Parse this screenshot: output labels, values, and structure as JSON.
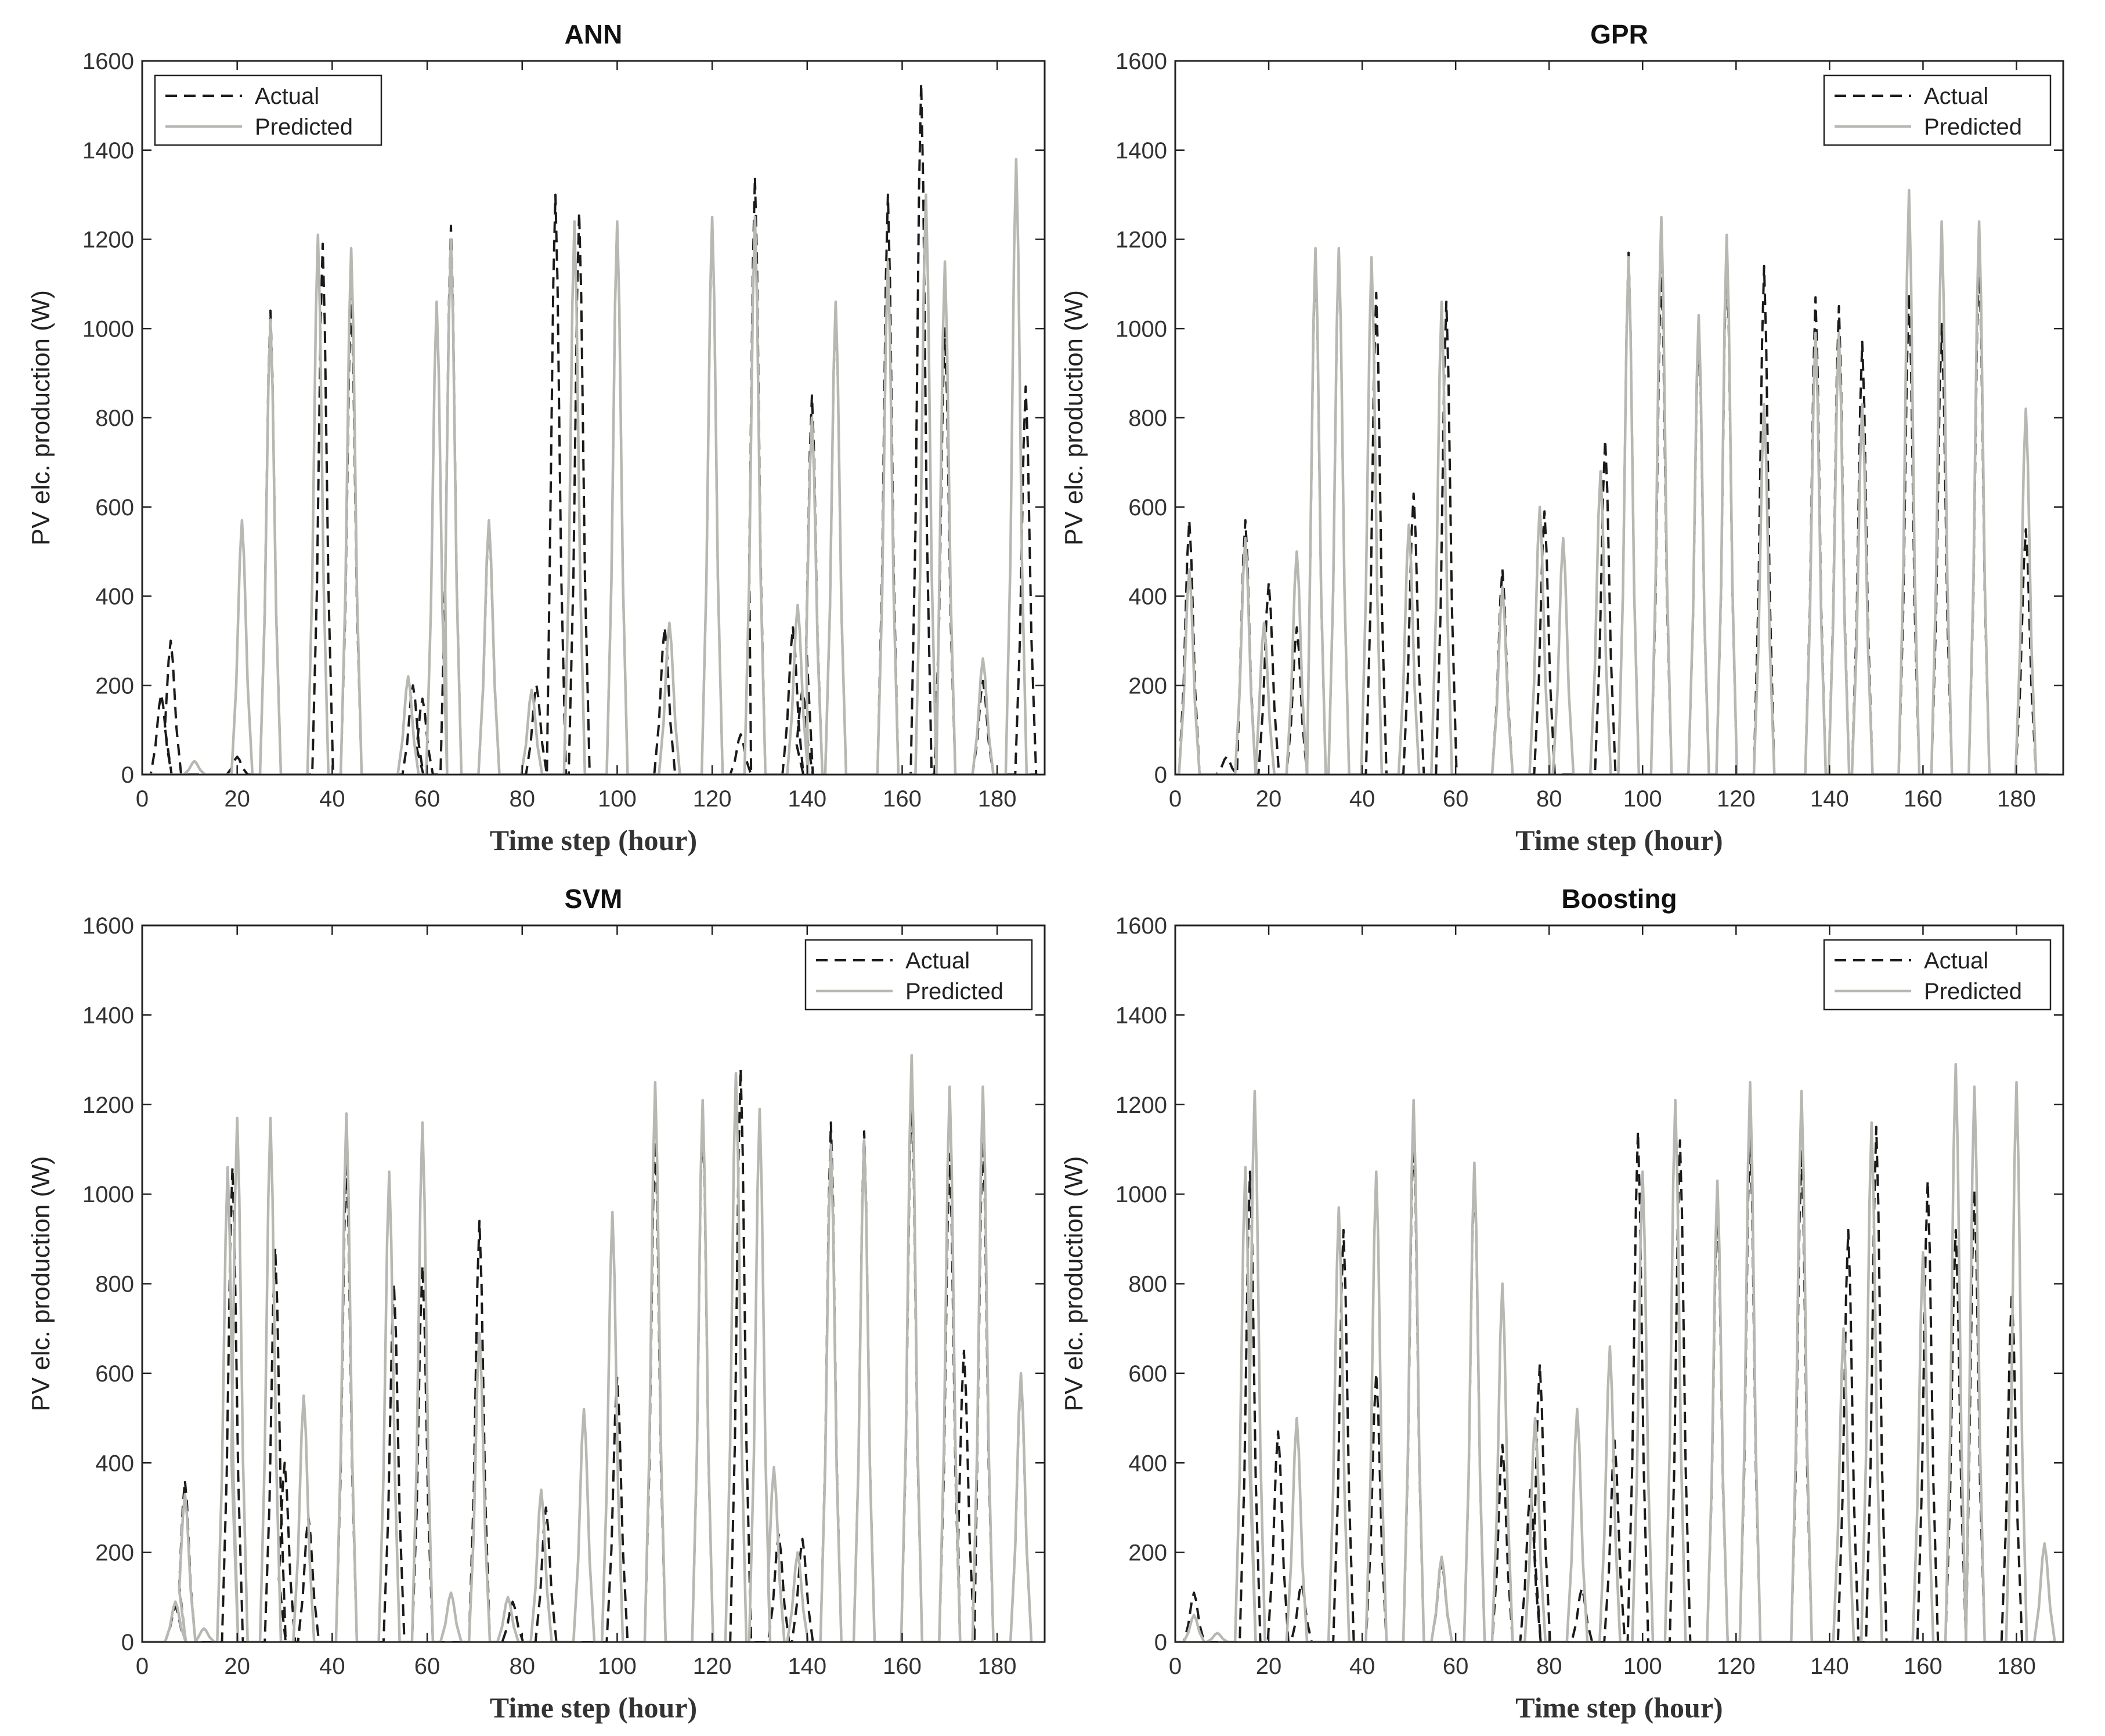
{
  "figure": {
    "legend_actual": "Actual",
    "legend_predicted": "Predicted",
    "colors": {
      "actual": "#1a1a1a",
      "predicted": "#b8b8b2",
      "axis": "#222222"
    }
  },
  "chart_data": [
    {
      "type": "line",
      "title": "ANN",
      "xlabel": "Time step (hour)",
      "ylabel": "PV elc. production (W)",
      "xlim": [
        0,
        190
      ],
      "ylim": [
        0,
        1600
      ],
      "xticks": [
        0,
        20,
        40,
        60,
        80,
        100,
        120,
        140,
        160,
        180
      ],
      "yticks": [
        0,
        200,
        400,
        600,
        800,
        1000,
        1200,
        1400,
        1600
      ],
      "legend_position": "top-left",
      "series": [
        {
          "name": "Actual",
          "style": "dashed",
          "peaks": [
            [
              4,
              180
            ],
            [
              6,
              300
            ],
            [
              20,
              40
            ],
            [
              27,
              1040
            ],
            [
              38,
              1190
            ],
            [
              44,
              1080
            ],
            [
              57,
              200
            ],
            [
              59,
              170
            ],
            [
              65,
              1230
            ],
            [
              73,
              560
            ],
            [
              83,
              200
            ],
            [
              87,
              1300
            ],
            [
              92,
              1260
            ],
            [
              100,
              1240
            ],
            [
              110,
              330
            ],
            [
              120,
              1240
            ],
            [
              126,
              90
            ],
            [
              129,
              1340
            ],
            [
              137,
              330
            ],
            [
              139,
              190
            ],
            [
              141,
              850
            ],
            [
              146,
              1050
            ],
            [
              157,
              1300
            ],
            [
              164,
              1550
            ],
            [
              169,
              1000
            ],
            [
              177,
              210
            ],
            [
              186,
              870
            ]
          ]
        },
        {
          "name": "Predicted",
          "style": "solid",
          "peaks": [
            [
              11,
              30
            ],
            [
              21,
              570
            ],
            [
              27,
              1020
            ],
            [
              37,
              1210
            ],
            [
              44,
              1180
            ],
            [
              56,
              220
            ],
            [
              62,
              1060
            ],
            [
              65,
              1200
            ],
            [
              73,
              570
            ],
            [
              82,
              190
            ],
            [
              91,
              1240
            ],
            [
              100,
              1240
            ],
            [
              111,
              340
            ],
            [
              120,
              1250
            ],
            [
              129,
              1250
            ],
            [
              138,
              380
            ],
            [
              141,
              800
            ],
            [
              146,
              1060
            ],
            [
              157,
              1150
            ],
            [
              165,
              1300
            ],
            [
              169,
              1150
            ],
            [
              177,
              260
            ],
            [
              184,
              1380
            ]
          ]
        }
      ]
    },
    {
      "type": "line",
      "title": "GPR",
      "xlabel": "Time step (hour)",
      "ylabel": "PV elc. production (W)",
      "xlim": [
        0,
        190
      ],
      "ylim": [
        0,
        1600
      ],
      "xticks": [
        0,
        20,
        40,
        60,
        80,
        100,
        120,
        140,
        160,
        180
      ],
      "yticks": [
        0,
        200,
        400,
        600,
        800,
        1000,
        1200,
        1400,
        1600
      ],
      "legend_position": "top-right",
      "series": [
        {
          "name": "Actual",
          "style": "dashed",
          "peaks": [
            [
              3,
              570
            ],
            [
              11,
              40
            ],
            [
              15,
              570
            ],
            [
              20,
              430
            ],
            [
              26,
              330
            ],
            [
              30,
              1160
            ],
            [
              35,
              1170
            ],
            [
              43,
              1080
            ],
            [
              51,
              630
            ],
            [
              58,
              1060
            ],
            [
              70,
              460
            ],
            [
              79,
              590
            ],
            [
              92,
              750
            ],
            [
              97,
              1170
            ],
            [
              104,
              1140
            ],
            [
              112,
              1000
            ],
            [
              118,
              1170
            ],
            [
              126,
              1140
            ],
            [
              137,
              1070
            ],
            [
              142,
              1050
            ],
            [
              147,
              970
            ],
            [
              157,
              1080
            ],
            [
              164,
              1010
            ],
            [
              172,
              1160
            ],
            [
              182,
              550
            ]
          ]
        },
        {
          "name": "Predicted",
          "style": "solid",
          "peaks": [
            [
              3,
              460
            ],
            [
              15,
              530
            ],
            [
              19,
              340
            ],
            [
              26,
              500
            ],
            [
              30,
              1180
            ],
            [
              35,
              1180
            ],
            [
              42,
              1160
            ],
            [
              50,
              560
            ],
            [
              57,
              1060
            ],
            [
              70,
              420
            ],
            [
              78,
              600
            ],
            [
              83,
              530
            ],
            [
              91,
              680
            ],
            [
              97,
              1160
            ],
            [
              104,
              1250
            ],
            [
              112,
              1030
            ],
            [
              118,
              1210
            ],
            [
              126,
              830
            ],
            [
              137,
              990
            ],
            [
              142,
              990
            ],
            [
              147,
              830
            ],
            [
              157,
              1310
            ],
            [
              164,
              1240
            ],
            [
              172,
              1240
            ],
            [
              182,
              820
            ]
          ]
        }
      ]
    },
    {
      "type": "line",
      "title": "SVM",
      "xlabel": "Time step (hour)",
      "ylabel": "PV elc. production (W)",
      "xlim": [
        0,
        190
      ],
      "ylim": [
        0,
        1600
      ],
      "xticks": [
        0,
        20,
        40,
        60,
        80,
        100,
        120,
        140,
        160,
        180
      ],
      "yticks": [
        0,
        200,
        400,
        600,
        800,
        1000,
        1200,
        1400,
        1600
      ],
      "legend_position": "top-right",
      "series": [
        {
          "name": "Actual",
          "style": "dashed",
          "peaks": [
            [
              7,
              80
            ],
            [
              9,
              360
            ],
            [
              19,
              1060
            ],
            [
              28,
              880
            ],
            [
              30,
              400
            ],
            [
              35,
              280
            ],
            [
              43,
              1080
            ],
            [
              53,
              800
            ],
            [
              59,
              840
            ],
            [
              71,
              940
            ],
            [
              78,
              90
            ],
            [
              85,
              300
            ],
            [
              100,
              590
            ],
            [
              108,
              1140
            ],
            [
              118,
              1180
            ],
            [
              126,
              1280
            ],
            [
              134,
              240
            ],
            [
              139,
              230
            ],
            [
              145,
              1160
            ],
            [
              152,
              1140
            ],
            [
              162,
              1240
            ],
            [
              170,
              1090
            ],
            [
              173,
              650
            ],
            [
              177,
              1140
            ],
            [
              185,
              590
            ]
          ]
        },
        {
          "name": "Predicted",
          "style": "solid",
          "peaks": [
            [
              7,
              90
            ],
            [
              9,
              330
            ],
            [
              13,
              30
            ],
            [
              18,
              1060
            ],
            [
              20,
              1170
            ],
            [
              27,
              1170
            ],
            [
              34,
              550
            ],
            [
              43,
              1180
            ],
            [
              52,
              1050
            ],
            [
              59,
              1160
            ],
            [
              65,
              110
            ],
            [
              71,
              690
            ],
            [
              77,
              100
            ],
            [
              84,
              340
            ],
            [
              93,
              520
            ],
            [
              99,
              960
            ],
            [
              108,
              1250
            ],
            [
              118,
              1210
            ],
            [
              125,
              1270
            ],
            [
              130,
              1190
            ],
            [
              133,
              390
            ],
            [
              138,
              200
            ],
            [
              145,
              1110
            ],
            [
              152,
              1120
            ],
            [
              162,
              1310
            ],
            [
              170,
              1240
            ],
            [
              177,
              1240
            ],
            [
              185,
              600
            ]
          ]
        }
      ]
    },
    {
      "type": "line",
      "title": "Boosting",
      "xlabel": "Time step (hour)",
      "ylabel": "PV elc. production (W)",
      "xlim": [
        0,
        190
      ],
      "ylim": [
        0,
        1600
      ],
      "xticks": [
        0,
        20,
        40,
        60,
        80,
        100,
        120,
        140,
        160,
        180
      ],
      "yticks": [
        0,
        200,
        400,
        600,
        800,
        1000,
        1200,
        1400,
        1600
      ],
      "legend_position": "top-right",
      "series": [
        {
          "name": "Actual",
          "style": "dashed",
          "peaks": [
            [
              4,
              110
            ],
            [
              16,
              1050
            ],
            [
              22,
              470
            ],
            [
              27,
              130
            ],
            [
              36,
              920
            ],
            [
              43,
              600
            ],
            [
              51,
              1150
            ],
            [
              57,
              180
            ],
            [
              64,
              1050
            ],
            [
              70,
              440
            ],
            [
              76,
              340
            ],
            [
              78,
              620
            ],
            [
              87,
              120
            ],
            [
              94,
              450
            ],
            [
              99,
              1140
            ],
            [
              108,
              1120
            ],
            [
              116,
              980
            ],
            [
              123,
              1150
            ],
            [
              134,
              1100
            ],
            [
              144,
              920
            ],
            [
              150,
              1150
            ],
            [
              161,
              1030
            ],
            [
              167,
              920
            ],
            [
              171,
              1010
            ],
            [
              179,
              780
            ],
            [
              186,
              220
            ]
          ]
        },
        {
          "name": "Predicted",
          "style": "solid",
          "peaks": [
            [
              4,
              60
            ],
            [
              9,
              20
            ],
            [
              15,
              1060
            ],
            [
              17,
              1230
            ],
            [
              26,
              500
            ],
            [
              35,
              970
            ],
            [
              43,
              1050
            ],
            [
              51,
              1210
            ],
            [
              57,
              190
            ],
            [
              64,
              1070
            ],
            [
              70,
              800
            ],
            [
              77,
              500
            ],
            [
              86,
              520
            ],
            [
              93,
              660
            ],
            [
              100,
              1050
            ],
            [
              107,
              1210
            ],
            [
              116,
              1030
            ],
            [
              123,
              1250
            ],
            [
              134,
              1230
            ],
            [
              143,
              700
            ],
            [
              149,
              1160
            ],
            [
              160,
              870
            ],
            [
              167,
              1290
            ],
            [
              171,
              1240
            ],
            [
              180,
              1250
            ],
            [
              186,
              220
            ]
          ]
        }
      ]
    }
  ]
}
